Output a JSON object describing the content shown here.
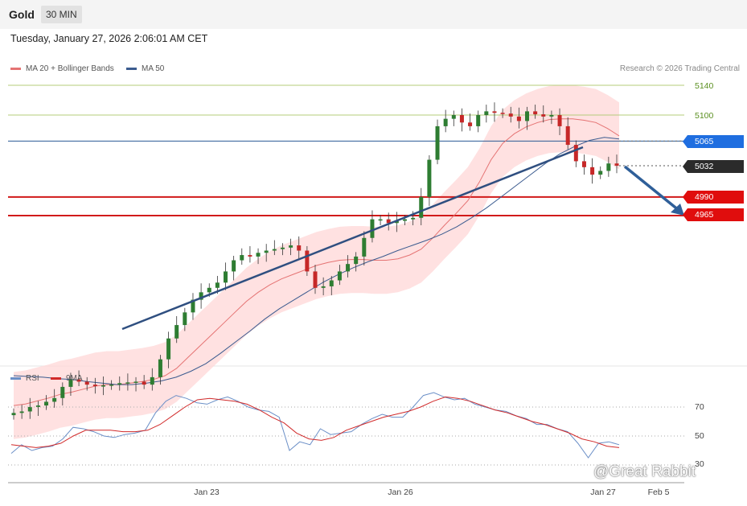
{
  "header": {
    "symbol": "Gold",
    "timeframe": "30 MIN",
    "timestamp": "Tuesday, January 27, 2026 2:06:01 AM CET"
  },
  "legend": {
    "ma20": "MA 20 + Bollinger Bands",
    "ma50": "MA 50",
    "rsi": "RSI",
    "rsi_ma": "9MA"
  },
  "credit": "Research © 2026 Trading Central",
  "watermark": "@Great Rabbit",
  "colors": {
    "candle_up": "#2e7d32",
    "candle_down": "#c62828",
    "bollinger": "#ffd7d7",
    "ma20": "#e57373",
    "ma50": "#3b5b8f",
    "level_green": "#b5cc7a",
    "level_blue": "#2a5a94",
    "level_red": "#d11a1a",
    "rsi_line": "#6b8fc7",
    "rsi_ma": "#d12a2a",
    "arrow": "#2f5f99"
  },
  "chart_data": [
    {
      "type": "candlestick",
      "title": "",
      "x_ticks": [
        "Jan 23",
        "Jan 26",
        "Jan 27",
        "Feb 5"
      ],
      "y_ticks": [
        5140,
        5100,
        4990,
        4965
      ],
      "current_price": 5032,
      "levels": [
        {
          "value": 5140,
          "label": "5140",
          "kind": "resistance"
        },
        {
          "value": 5100,
          "label": "5100",
          "kind": "resistance"
        },
        {
          "value": 5065,
          "label": "5065",
          "kind": "pivot"
        },
        {
          "value": 5032,
          "label": "5032",
          "kind": "last"
        },
        {
          "value": 4990,
          "label": "4990",
          "kind": "support"
        },
        {
          "value": 4965,
          "label": "4965",
          "kind": "support"
        }
      ],
      "close_series": [
        4700,
        4702,
        4708,
        4710,
        4715,
        4720,
        4735,
        4745,
        4742,
        4738,
        4736,
        4737,
        4738,
        4740,
        4741,
        4742,
        4738,
        4748,
        4772,
        4800,
        4818,
        4835,
        4852,
        4862,
        4868,
        4875,
        4890,
        4905,
        4912,
        4910,
        4915,
        4918,
        4920,
        4922,
        4925,
        4918,
        4890,
        4868,
        4870,
        4878,
        4890,
        4900,
        4910,
        4935,
        4960,
        4960,
        4955,
        4958,
        4960,
        4962,
        4990,
        5040,
        5085,
        5095,
        5100,
        5090,
        5085,
        5100,
        5105,
        5103,
        5102,
        5098,
        5092,
        5105,
        5101,
        5098,
        5100,
        5085,
        5060,
        5038,
        5030,
        5020,
        5025,
        5035,
        5032
      ],
      "ma20_series": [
        4710,
        4712,
        4716,
        4720,
        4725,
        4728,
        4732,
        4736,
        4738,
        4738,
        4740,
        4742,
        4745,
        4750,
        4760,
        4775,
        4790,
        4805,
        4820,
        4835,
        4850,
        4862,
        4872,
        4880,
        4886,
        4892,
        4898,
        4902,
        4905,
        4906,
        4906,
        4905,
        4905,
        4907,
        4912,
        4920,
        4935,
        4952,
        4968,
        4985,
        5010,
        5040,
        5062,
        5075,
        5084,
        5090,
        5094,
        5095,
        5095,
        5093,
        5090,
        5082,
        5072
      ],
      "ma50_series": [
        4750,
        4749,
        4748,
        4746,
        4745,
        4742,
        4740,
        4738,
        4738,
        4740,
        4743,
        4748,
        4756,
        4766,
        4780,
        4795,
        4810,
        4826,
        4840,
        4852,
        4864,
        4876,
        4886,
        4895,
        4903,
        4910,
        4918,
        4925,
        4932,
        4940,
        4950,
        4962,
        4975,
        4990,
        5005,
        5020,
        5035,
        5048,
        5058,
        5066,
        5070,
        5068
      ]
    },
    {
      "type": "line",
      "y_ticks": [
        70,
        50,
        30
      ],
      "series": [
        {
          "name": "RSI",
          "values": [
            38,
            44,
            40,
            42,
            43,
            48,
            56,
            55,
            53,
            50,
            49,
            51,
            52,
            54,
            66,
            74,
            78,
            76,
            73,
            72,
            75,
            77,
            74,
            70,
            68,
            67,
            63,
            40,
            46,
            44,
            55,
            51,
            52,
            53,
            58,
            62,
            65,
            63,
            63,
            70,
            78,
            80,
            77,
            75,
            76,
            72,
            70,
            68,
            67,
            64,
            62,
            58,
            58,
            55,
            53,
            45,
            35,
            45,
            46,
            44
          ]
        },
        {
          "name": "9MA",
          "values": [
            44,
            43,
            42,
            43,
            45,
            50,
            54,
            54,
            54,
            53,
            53,
            54,
            58,
            64,
            70,
            75,
            76,
            75,
            74,
            72,
            68,
            63,
            59,
            52,
            48,
            47,
            49,
            54,
            57,
            60,
            63,
            65,
            67,
            70,
            74,
            77,
            76,
            74,
            71,
            68,
            66,
            63,
            60,
            58,
            55,
            52,
            48,
            46,
            43,
            42
          ]
        }
      ]
    }
  ]
}
